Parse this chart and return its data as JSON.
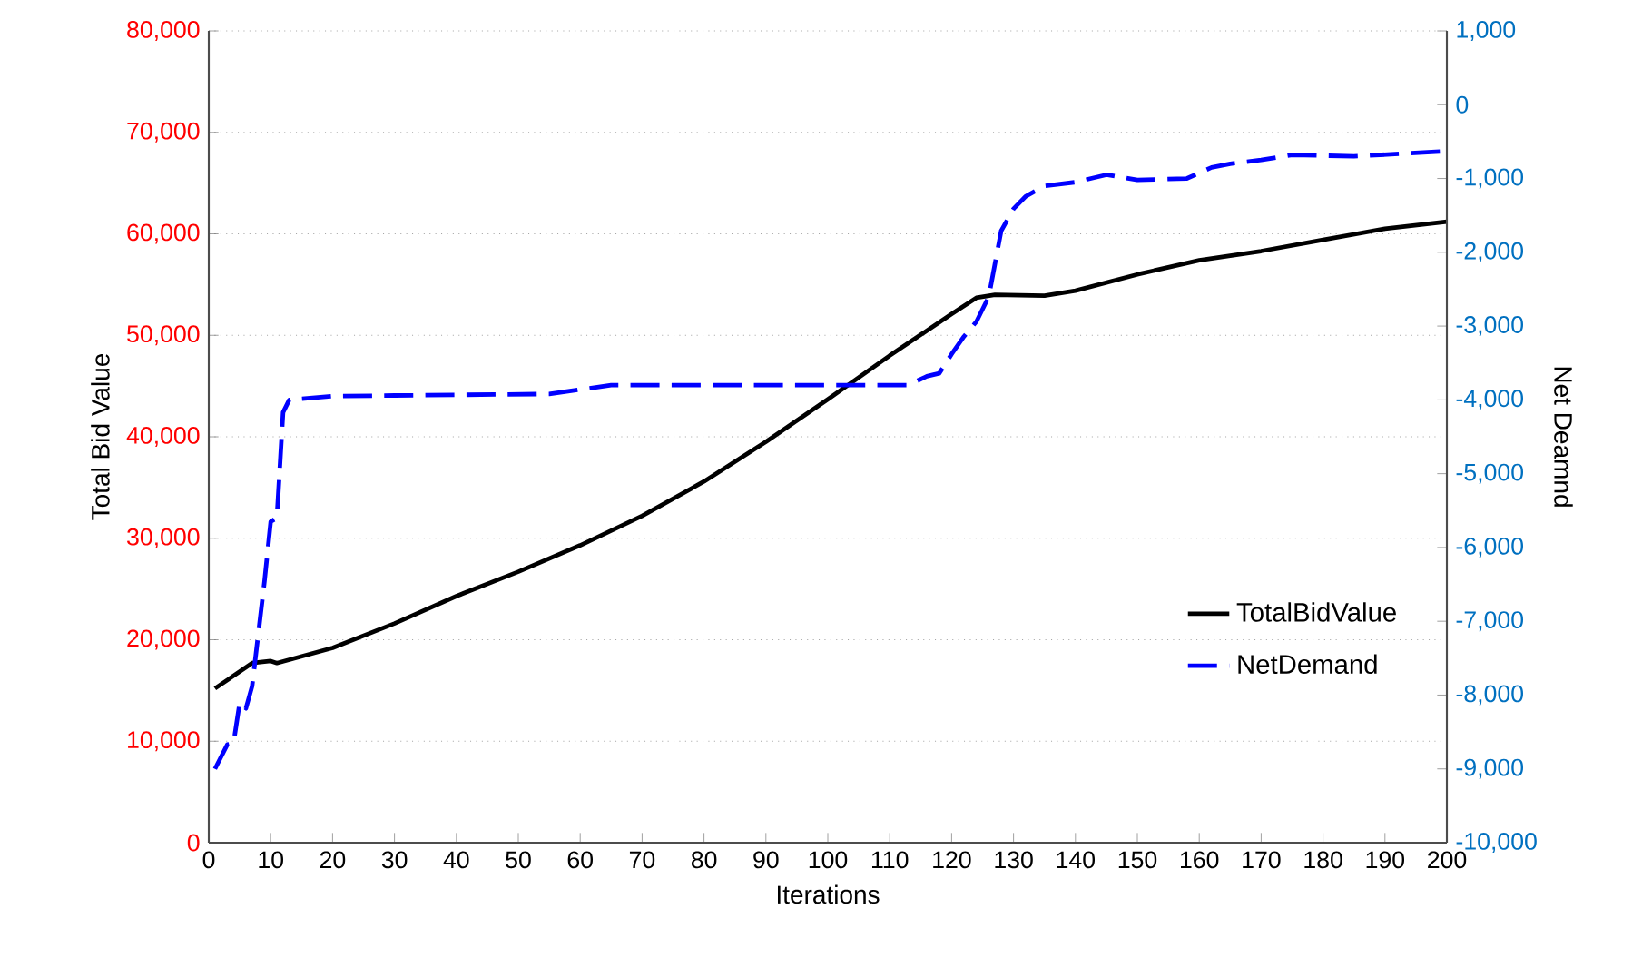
{
  "chart_data": {
    "type": "line",
    "xlabel": "Iterations",
    "ylabel": "Total Bid Value",
    "y2label": "Net Deamnd",
    "x": [
      1,
      7,
      10,
      11,
      20,
      30,
      40,
      50,
      60,
      70,
      80,
      90,
      100,
      110,
      120,
      124,
      127,
      135,
      140,
      150,
      160,
      170,
      180,
      190,
      200
    ],
    "series": [
      {
        "name": "TotalBidValue",
        "color": "#000000",
        "line_style": "solid",
        "values": [
          15200,
          17700,
          17900,
          17700,
          19200,
          21600,
          24300,
          26700,
          29300,
          32200,
          35600,
          39500,
          43700,
          48000,
          52100,
          53700,
          54000,
          53900,
          54400,
          56000,
          57400,
          58300,
          59400,
          60500,
          61200
        ]
      },
      {
        "name": "NetDemand",
        "color": "#0000ff",
        "line_style": "dashed",
        "axis": "y2",
        "x": [
          1,
          3,
          4,
          5,
          6,
          7,
          9,
          10,
          11,
          12,
          13,
          20,
          30,
          55,
          65,
          110,
          113,
          116,
          118,
          120,
          122,
          124,
          126,
          128,
          130,
          132,
          135,
          140,
          145,
          150,
          158,
          162,
          165,
          170,
          175,
          185,
          200
        ],
        "values": [
          -9000,
          -8670,
          -8650,
          -8100,
          -8180,
          -7880,
          -6460,
          -5650,
          -5600,
          -4170,
          -4000,
          -3950,
          -3940,
          -3920,
          -3800,
          -3800,
          -3800,
          -3680,
          -3640,
          -3380,
          -3140,
          -2940,
          -2600,
          -1710,
          -1410,
          -1240,
          -1100,
          -1050,
          -950,
          -1020,
          -1000,
          -850,
          -800,
          -750,
          -680,
          -700,
          -630
        ]
      }
    ],
    "xlim": [
      0,
      200
    ],
    "xticks": [
      0,
      10,
      20,
      30,
      40,
      50,
      60,
      70,
      80,
      90,
      100,
      110,
      120,
      130,
      140,
      150,
      160,
      170,
      180,
      190,
      200
    ],
    "ylim": [
      0,
      80000
    ],
    "yticks": [
      {
        "value": 0,
        "label": "0"
      },
      {
        "value": 10000,
        "label": "10,000"
      },
      {
        "value": 20000,
        "label": "20,000"
      },
      {
        "value": 30000,
        "label": "30,000"
      },
      {
        "value": 40000,
        "label": "40,000"
      },
      {
        "value": 50000,
        "label": "50,000"
      },
      {
        "value": 60000,
        "label": "60,000"
      },
      {
        "value": 70000,
        "label": "70,000"
      },
      {
        "value": 80000,
        "label": "80,000"
      }
    ],
    "y2lim": [
      -10000,
      1000
    ],
    "y2ticks": [
      {
        "value": -10000,
        "label": "-10,000"
      },
      {
        "value": -9000,
        "label": "-9,000"
      },
      {
        "value": -8000,
        "label": "-8,000"
      },
      {
        "value": -7000,
        "label": "-7,000"
      },
      {
        "value": -6000,
        "label": "-6,000"
      },
      {
        "value": -5000,
        "label": "-5,000"
      },
      {
        "value": -4000,
        "label": "-4,000"
      },
      {
        "value": -3000,
        "label": "-3,000"
      },
      {
        "value": -2000,
        "label": "-2,000"
      },
      {
        "value": -1000,
        "label": "-1,000"
      },
      {
        "value": 0,
        "label": "0"
      },
      {
        "value": 1000,
        "label": "1,000"
      }
    ],
    "grid": "y",
    "legend": "right"
  }
}
